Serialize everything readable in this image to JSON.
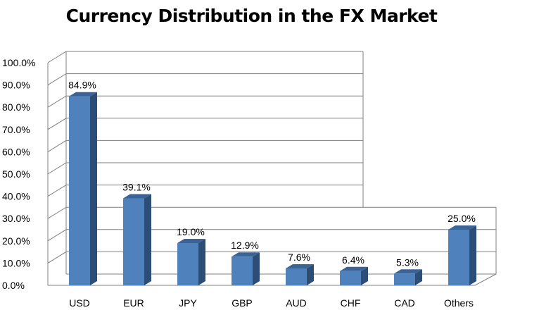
{
  "chart_data": {
    "type": "bar",
    "title": "Currency Distribution in the FX Market",
    "categories": [
      "USD",
      "EUR",
      "JPY",
      "GBP",
      "AUD",
      "CHF",
      "CAD",
      "Others"
    ],
    "values": [
      84.9,
      39.1,
      19.0,
      12.9,
      7.6,
      6.4,
      5.3,
      25.0
    ],
    "data_labels": [
      "84.9%",
      "39.1%",
      "19.0%",
      "12.9%",
      "7.6%",
      "6.4%",
      "5.3%",
      "25.0%"
    ],
    "y_ticks": [
      "0.0%",
      "10.0%",
      "20.0%",
      "30.0%",
      "40.0%",
      "50.0%",
      "60.0%",
      "70.0%",
      "80.0%",
      "90.0%",
      "100.0%"
    ],
    "ylim": [
      0,
      100
    ],
    "xlabel": "",
    "ylabel": "",
    "grid": true,
    "legend": "none",
    "style": "3d",
    "colors": {
      "bar_front": "#4F81BD",
      "bar_side": "#2C4D75",
      "bar_top": "#3A6396",
      "grid": "#7F7F7F"
    }
  }
}
